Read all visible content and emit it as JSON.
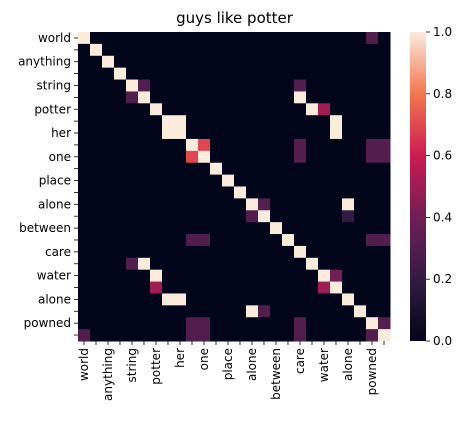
{
  "chart_data": {
    "type": "heatmap",
    "title": "guys like potter",
    "xlabel": "",
    "ylabel": "",
    "x_categories": [
      "world",
      "anything",
      "string",
      "potter",
      "her",
      "one",
      "place",
      "alone",
      "between",
      "care",
      "water",
      "alone",
      "powned"
    ],
    "y_categories": [
      "world",
      "anything",
      "string",
      "potter",
      "her",
      "one",
      "place",
      "alone",
      "between",
      "care",
      "water",
      "alone",
      "powned"
    ],
    "x_tokens": [
      "world",
      "",
      "anything",
      "",
      "string",
      "",
      "potter",
      "",
      "her",
      "",
      "one",
      "",
      "place",
      "",
      "alone",
      "",
      "between",
      "",
      "care",
      "",
      "water",
      "",
      "alone",
      "",
      "powned",
      ""
    ],
    "y_tokens": [
      "world",
      "",
      "anything",
      "",
      "string",
      "",
      "potter",
      "",
      "her",
      "",
      "one",
      "",
      "place",
      "",
      "alone",
      "",
      "between",
      "",
      "care",
      "",
      "water",
      "",
      "alone",
      "",
      "powned",
      ""
    ],
    "values": [
      [
        1,
        0,
        0,
        0,
        0,
        0,
        0,
        0,
        0,
        0,
        0,
        0,
        0,
        0,
        0,
        0,
        0,
        0,
        0,
        0,
        0,
        0,
        0,
        0,
        0.3,
        0
      ],
      [
        0,
        1,
        0,
        0,
        0,
        0,
        0,
        0,
        0,
        0,
        0,
        0,
        0,
        0,
        0,
        0,
        0,
        0,
        0,
        0,
        0,
        0,
        0,
        0,
        0,
        0
      ],
      [
        0,
        0,
        1,
        0,
        0,
        0,
        0,
        0,
        0,
        0,
        0,
        0,
        0,
        0,
        0,
        0,
        0,
        0,
        0,
        0,
        0,
        0,
        0,
        0,
        0,
        0
      ],
      [
        0,
        0,
        0,
        1,
        0,
        0,
        0,
        0,
        0,
        0,
        0,
        0,
        0,
        0,
        0,
        0,
        0,
        0,
        0,
        0,
        0,
        0,
        0,
        0,
        0,
        0
      ],
      [
        0,
        0,
        0,
        0,
        1,
        0.3,
        0,
        0,
        0,
        0,
        0,
        0,
        0,
        0,
        0,
        0,
        0,
        0,
        0.3,
        0,
        0,
        0,
        0,
        0,
        0,
        0
      ],
      [
        0,
        0,
        0,
        0,
        0.3,
        1,
        0,
        0,
        0,
        0,
        0,
        0,
        0,
        0,
        0,
        0,
        0,
        0,
        1,
        0,
        0,
        0,
        0,
        0,
        0,
        0
      ],
      [
        0,
        0,
        0,
        0,
        0,
        0,
        1,
        0,
        0,
        0,
        0,
        0,
        0,
        0,
        0,
        0,
        0,
        0,
        0,
        1,
        0.5,
        0,
        0,
        0,
        0,
        0
      ],
      [
        0,
        0,
        0,
        0,
        0,
        0,
        0,
        1,
        1,
        0,
        0,
        0,
        0,
        0,
        0,
        0,
        0,
        0,
        0,
        0,
        0,
        1,
        0,
        0,
        0,
        0
      ],
      [
        0,
        0,
        0,
        0,
        0,
        0,
        0,
        1,
        1,
        0,
        0,
        0,
        0,
        0,
        0,
        0,
        0,
        0,
        0,
        0,
        0,
        1,
        0,
        0,
        0,
        0
      ],
      [
        0,
        0,
        0,
        0,
        0,
        0,
        0,
        0,
        0,
        1,
        0.7,
        0,
        0,
        0,
        0,
        0,
        0,
        0,
        0.3,
        0,
        0,
        0,
        0,
        0,
        0.3,
        0.3
      ],
      [
        0,
        0,
        0,
        0,
        0,
        0,
        0,
        0,
        0,
        0.7,
        1,
        0,
        0,
        0,
        0,
        0,
        0,
        0,
        0.3,
        0,
        0,
        0,
        0,
        0,
        0.3,
        0.3
      ],
      [
        0,
        0,
        0,
        0,
        0,
        0,
        0,
        0,
        0,
        0,
        0,
        1,
        0,
        0,
        0,
        0,
        0,
        0,
        0,
        0,
        0,
        0,
        0,
        0,
        0,
        0
      ],
      [
        0,
        0,
        0,
        0,
        0,
        0,
        0,
        0,
        0,
        0,
        0,
        0,
        1,
        0,
        0,
        0,
        0,
        0,
        0,
        0,
        0,
        0,
        0,
        0,
        0,
        0
      ],
      [
        0,
        0,
        0,
        0,
        0,
        0,
        0,
        0,
        0,
        0,
        0,
        0,
        0,
        1,
        0,
        0,
        0,
        0,
        0,
        0,
        0,
        0,
        0,
        0,
        0,
        0
      ],
      [
        0,
        0,
        0,
        0,
        0,
        0,
        0,
        0,
        0,
        0,
        0,
        0,
        0,
        0,
        1,
        0.3,
        0,
        0,
        0,
        0,
        0,
        0,
        1,
        0,
        0,
        0
      ],
      [
        0,
        0,
        0,
        0,
        0,
        0,
        0,
        0,
        0,
        0,
        0,
        0,
        0,
        0,
        0.3,
        1,
        0,
        0,
        0,
        0,
        0,
        0,
        0.2,
        0,
        0,
        0
      ],
      [
        0,
        0,
        0,
        0,
        0,
        0,
        0,
        0,
        0,
        0,
        0,
        0,
        0,
        0,
        0,
        0,
        1,
        0,
        0,
        0,
        0,
        0,
        0,
        0,
        0,
        0
      ],
      [
        0,
        0,
        0,
        0,
        0,
        0,
        0,
        0,
        0,
        0.3,
        0.3,
        0,
        0,
        0,
        0,
        0,
        0,
        1,
        0,
        0,
        0,
        0,
        0,
        0,
        0.3,
        0.3
      ],
      [
        0,
        0,
        0,
        0,
        0,
        0,
        0,
        0,
        0,
        0,
        0,
        0,
        0,
        0,
        0,
        0,
        0,
        0,
        1,
        0,
        0,
        0,
        0,
        0,
        0,
        0
      ],
      [
        0,
        0,
        0,
        0,
        0.3,
        1,
        0,
        0,
        0,
        0,
        0,
        0,
        0,
        0,
        0,
        0,
        0,
        0,
        0,
        1,
        0,
        0,
        0,
        0,
        0,
        0
      ],
      [
        0,
        0,
        0,
        0,
        0,
        0,
        1,
        0,
        0,
        0,
        0,
        0,
        0,
        0,
        0,
        0,
        0,
        0,
        0,
        0,
        1,
        0.4,
        0,
        0,
        0,
        0
      ],
      [
        0,
        0,
        0,
        0,
        0,
        0,
        0.5,
        0,
        0,
        0,
        0,
        0,
        0,
        0,
        0,
        0,
        0,
        0,
        0,
        0,
        0.5,
        1,
        0,
        0,
        0,
        0
      ],
      [
        0,
        0,
        0,
        0,
        0,
        0,
        0,
        1,
        1,
        0,
        0,
        0,
        0,
        0,
        0,
        0,
        0,
        0,
        0,
        0,
        0,
        0,
        1,
        0,
        0,
        0
      ],
      [
        0,
        0,
        0,
        0,
        0,
        0,
        0,
        0,
        0,
        0,
        0,
        0,
        0,
        0,
        1,
        0.3,
        0,
        0,
        0,
        0,
        0,
        0,
        0,
        1,
        0,
        0
      ],
      [
        0,
        0,
        0,
        0,
        0,
        0,
        0,
        0,
        0,
        0.3,
        0.3,
        0,
        0,
        0,
        0,
        0,
        0,
        0,
        0.3,
        0,
        0,
        0,
        0,
        0,
        1,
        0.3
      ],
      [
        0.3,
        0,
        0,
        0,
        0,
        0,
        0,
        0,
        0,
        0.3,
        0.3,
        0,
        0,
        0,
        0,
        0,
        0,
        0,
        0.3,
        0,
        0,
        0,
        0,
        0,
        0.3,
        1
      ]
    ],
    "colorbar": {
      "min": 0.0,
      "max": 1.0,
      "ticks": [
        "0.0",
        "0.2",
        "0.4",
        "0.6",
        "0.8",
        "1.0"
      ],
      "tick_values": [
        0,
        0.2,
        0.4,
        0.6,
        0.8,
        1.0
      ]
    },
    "colormap": "rocket",
    "grid": false,
    "legend": "colorbar-right"
  }
}
